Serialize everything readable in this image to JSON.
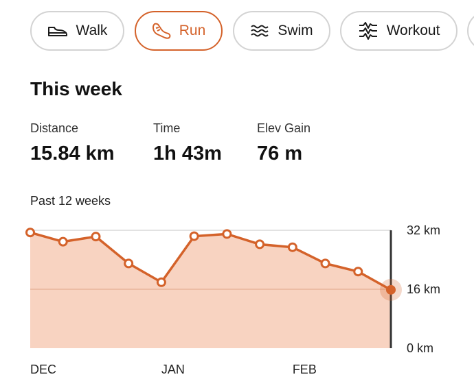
{
  "activity_tabs": [
    {
      "label": "Walk",
      "icon": "shoe-icon",
      "active": false
    },
    {
      "label": "Run",
      "icon": "running-shoe-icon",
      "active": true
    },
    {
      "label": "Swim",
      "icon": "waves-icon",
      "active": false
    },
    {
      "label": "Workout",
      "icon": "heart-rate-icon",
      "active": false
    }
  ],
  "week": {
    "title": "This week",
    "distance_label": "Distance",
    "distance_value": "15.84 km",
    "time_label": "Time",
    "time_value": "1h 43m",
    "elev_label": "Elev Gain",
    "elev_value": "76 m"
  },
  "chart_label": "Past 12 weeks",
  "colors": {
    "accent": "#d4622a",
    "area_fill": "#f8d3c1",
    "tab_border": "#d3d3d3"
  },
  "chart_data": {
    "type": "area",
    "title": "Past 12 weeks",
    "x": [
      "w1",
      "w2",
      "w3",
      "w4",
      "w5",
      "w6",
      "w7",
      "w8",
      "w9",
      "w10",
      "w11",
      "w12"
    ],
    "x_tick_labels": [
      {
        "label": "DEC",
        "week_index": 0
      },
      {
        "label": "JAN",
        "week_index": 4
      },
      {
        "label": "FEB",
        "week_index": 8
      }
    ],
    "values": [
      31.4,
      28.9,
      30.3,
      23.0,
      17.9,
      30.4,
      31.0,
      28.2,
      27.4,
      23.0,
      20.8,
      15.84
    ],
    "y_unit": "km",
    "ylim": [
      0,
      32
    ],
    "y_ticks": [
      {
        "value": 32,
        "label": "32 km"
      },
      {
        "value": 16,
        "label": "16 km"
      },
      {
        "value": 0,
        "label": "0 km"
      }
    ],
    "highlighted_index": 11
  }
}
